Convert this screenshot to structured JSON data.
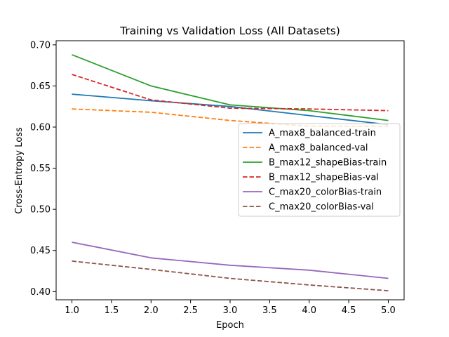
{
  "chart_data": {
    "type": "line",
    "title": "Training vs Validation Loss (All Datasets)",
    "xlabel": "Epoch",
    "ylabel": "Cross-Entropy Loss",
    "xlim": [
      0.8,
      5.2
    ],
    "ylim": [
      0.39,
      0.705
    ],
    "xticks": [
      "1.0",
      "1.5",
      "2.0",
      "2.5",
      "3.0",
      "3.5",
      "4.0",
      "4.5",
      "5.0"
    ],
    "yticks": [
      "0.40",
      "0.45",
      "0.50",
      "0.55",
      "0.60",
      "0.65",
      "0.70"
    ],
    "grid": false,
    "legend_position": "center-right",
    "x": [
      1,
      2,
      3,
      4,
      5
    ],
    "series": [
      {
        "name": "A_max8_balanced-train",
        "values": [
          0.64,
          0.632,
          0.625,
          0.614,
          0.603
        ],
        "color": "#1f77b4",
        "dashed": false
      },
      {
        "name": "A_max8_balanced-val",
        "values": [
          0.622,
          0.618,
          0.608,
          0.601,
          0.601
        ],
        "color": "#ff7f0e",
        "dashed": true
      },
      {
        "name": "B_max12_shapeBias-train",
        "values": [
          0.688,
          0.65,
          0.627,
          0.62,
          0.608
        ],
        "color": "#2ca02c",
        "dashed": false
      },
      {
        "name": "B_max12_shapeBias-val",
        "values": [
          0.664,
          0.633,
          0.623,
          0.622,
          0.62
        ],
        "color": "#d62728",
        "dashed": true
      },
      {
        "name": "C_max20_colorBias-train",
        "values": [
          0.46,
          0.441,
          0.432,
          0.426,
          0.416
        ],
        "color": "#9467bd",
        "dashed": false
      },
      {
        "name": "C_max20_colorBias-val",
        "values": [
          0.437,
          0.427,
          0.416,
          0.408,
          0.401
        ],
        "color": "#8c564b",
        "dashed": true
      }
    ]
  }
}
